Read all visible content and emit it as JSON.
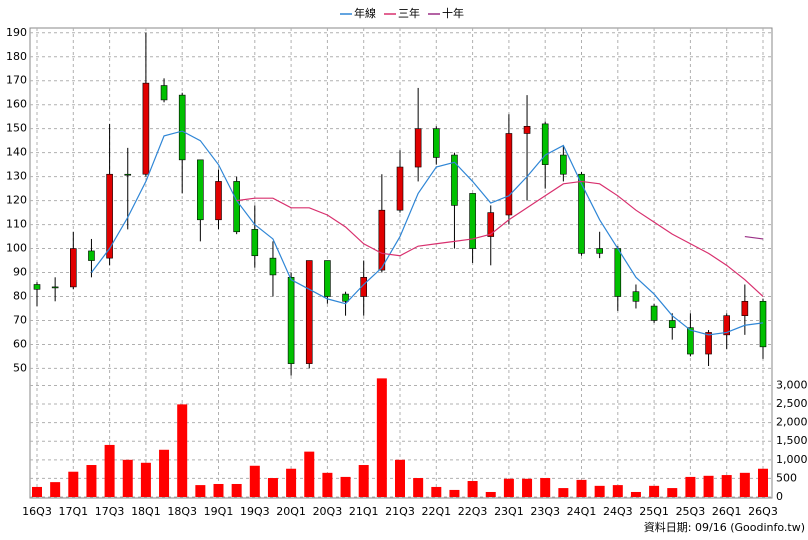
{
  "chart_data": [
    {
      "type": "candlestick",
      "categories": [
        "16Q3",
        null,
        "17Q1",
        null,
        "17Q3",
        null,
        "18Q1",
        null,
        "18Q3",
        null,
        "19Q1",
        null,
        "19Q3",
        null,
        "20Q1",
        null,
        "20Q3",
        null,
        "21Q1",
        null,
        "21Q3",
        null,
        "22Q1",
        null,
        "22Q3",
        null,
        "23Q1",
        null,
        "23Q3",
        null,
        "24Q1",
        null,
        "24Q3",
        null,
        "25Q1",
        null,
        "25Q3",
        null,
        "26Q1",
        null,
        "26Q3"
      ],
      "open": [
        85,
        84,
        84,
        99,
        96,
        131,
        131,
        168,
        164,
        137,
        112,
        128,
        108,
        96,
        88,
        52,
        95,
        81,
        80,
        91,
        116,
        134,
        150,
        139,
        123,
        105,
        114,
        148,
        152,
        139,
        131,
        100,
        100,
        82,
        76,
        70,
        67,
        56,
        64,
        72,
        78
      ],
      "high": [
        86,
        88,
        107,
        104,
        152,
        142,
        190,
        171,
        165,
        137,
        133,
        130,
        118,
        103,
        90,
        95,
        95,
        82,
        95,
        131,
        141,
        167,
        151,
        140,
        123,
        118,
        156,
        164,
        153,
        143,
        132,
        107,
        101,
        85,
        77,
        73,
        73,
        66,
        73,
        85,
        79
      ],
      "low": [
        76,
        78,
        83,
        88,
        93,
        108,
        130,
        161,
        123,
        103,
        108,
        106,
        92,
        80,
        47,
        50,
        77,
        72,
        72,
        90,
        115,
        128,
        135,
        100,
        94,
        93,
        110,
        120,
        125,
        128,
        97,
        96,
        74,
        75,
        69,
        62,
        55,
        51,
        58,
        64,
        54
      ],
      "close": [
        83,
        84,
        100,
        95,
        131,
        131,
        169,
        162,
        137,
        112,
        128,
        107,
        97,
        89,
        52,
        95,
        80,
        78,
        88,
        116,
        134,
        150,
        138,
        118,
        100,
        115,
        148,
        151,
        135,
        131,
        98,
        98,
        80,
        78,
        70,
        67,
        56,
        65,
        72,
        78,
        59
      ],
      "up_color": "#e00000",
      "down_color": "#00c000",
      "lines": [
        {
          "name": "年線",
          "color": "#2f86d6",
          "values": [
            null,
            null,
            null,
            90,
            100,
            113,
            128,
            147,
            149,
            145,
            135,
            120,
            110,
            104,
            87,
            83,
            79,
            77,
            85,
            92,
            105,
            123,
            134,
            136,
            128,
            119,
            122,
            130,
            139,
            143,
            127,
            112,
            100,
            88,
            81,
            72,
            66,
            64,
            65,
            68,
            69
          ]
        },
        {
          "name": "三年",
          "color": "#d8306e",
          "values": [
            null,
            null,
            null,
            null,
            null,
            null,
            null,
            null,
            null,
            null,
            null,
            120,
            121,
            121,
            117,
            117,
            114,
            109,
            102,
            98,
            97,
            101,
            102,
            103,
            104,
            106,
            112,
            117,
            122,
            127,
            128,
            127,
            122,
            116,
            111,
            106,
            102,
            98,
            93,
            87,
            80
          ]
        },
        {
          "name": "十年",
          "color": "#9a2f86",
          "values": [
            null,
            null,
            null,
            null,
            null,
            null,
            null,
            null,
            null,
            null,
            null,
            null,
            null,
            null,
            null,
            null,
            null,
            null,
            null,
            null,
            null,
            null,
            null,
            null,
            null,
            null,
            null,
            null,
            null,
            null,
            null,
            null,
            null,
            null,
            null,
            null,
            null,
            null,
            null,
            105,
            104
          ]
        }
      ],
      "ylim": [
        46,
        192
      ],
      "yticks": [
        50,
        60,
        70,
        80,
        90,
        100,
        110,
        120,
        130,
        140,
        150,
        160,
        170,
        180,
        190
      ],
      "grid": true
    },
    {
      "type": "bar",
      "values": [
        270,
        400,
        680,
        860,
        1400,
        1000,
        920,
        1270,
        2490,
        320,
        350,
        350,
        840,
        510,
        760,
        1220,
        650,
        540,
        860,
        3190,
        1000,
        510,
        270,
        190,
        430,
        135,
        490,
        490,
        510,
        240,
        460,
        300,
        320,
        135,
        300,
        240,
        540,
        570,
        590,
        650,
        760
      ],
      "color": "#ff0000",
      "ylim": [
        0,
        3200
      ],
      "yticks": [
        0,
        500,
        {
          "value": 1000,
          "label": "1,000"
        },
        {
          "value": 1500,
          "label": "1,500"
        },
        {
          "value": 2000,
          "label": "2,000"
        },
        {
          "value": 2500,
          "label": "2,500"
        },
        {
          "value": 3000,
          "label": "3,000"
        }
      ],
      "grid": true
    }
  ],
  "footer": "資料日期: 09/16 (Goodinfo.tw)"
}
